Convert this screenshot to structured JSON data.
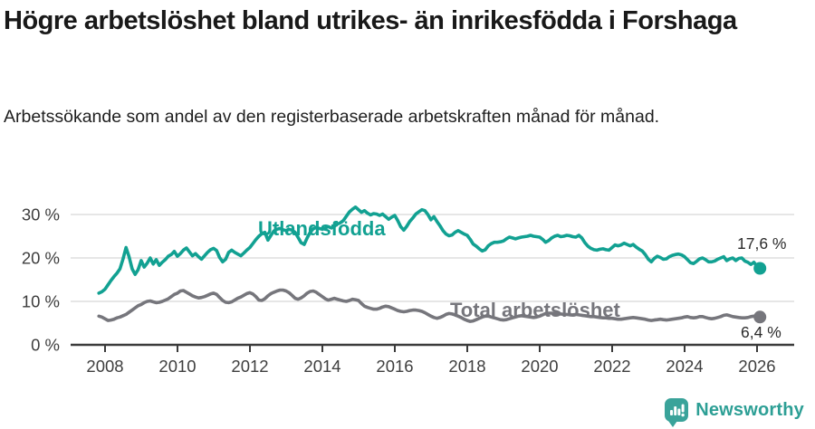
{
  "header": {
    "title": "Högre arbetslöshet bland utrikes- än inrikesfödda i Forshaga",
    "subtitle": "Arbetssökande som andel av den registerbaserade arbetskraften månad för månad."
  },
  "footer": {
    "brand": "Newsworthy",
    "logo_icon": "bar-chart-speech-bubble-icon"
  },
  "colors": {
    "accent": "#12A192",
    "gray_series": "#76767C",
    "grid": "#D8D8D8",
    "axis": "#3B3B3B",
    "tick_text": "#3E3E3E",
    "value_text": "#2B2B2B",
    "logo": "#3AA39A"
  },
  "chart_data": {
    "type": "line",
    "unit": "%",
    "title": "Högre arbetslöshet bland utrikes- än inrikesfödda i Forshaga",
    "xlabel": "",
    "ylabel": "Arbetssökande som andel av den registerbaserade arbetskraften",
    "x_ticks": [
      2008,
      2010,
      2012,
      2014,
      2016,
      2018,
      2020,
      2022,
      2024,
      2026
    ],
    "y_ticks": [
      0,
      10,
      20,
      30
    ],
    "y_tick_suffix": " %",
    "ylim": [
      0,
      33
    ],
    "xlim": [
      2007.0,
      2027.0
    ],
    "grid": true,
    "legend_position": "inline-labels",
    "series": [
      {
        "id": "utlandsfodda",
        "name": "Utlandsfödda",
        "color": "#12A192",
        "end_label": "17,6 %",
        "end_value": 17.6,
        "start": 2007.83,
        "interval_years": 0.0833,
        "values": [
          11.9,
          12.2,
          12.8,
          13.8,
          14.8,
          15.7,
          16.5,
          17.5,
          19.8,
          22.4,
          20.3,
          17.5,
          16.2,
          17.3,
          19.4,
          17.9,
          18.8,
          20.0,
          18.6,
          19.6,
          18.3,
          19.0,
          19.6,
          20.4,
          20.8,
          21.5,
          20.4,
          21.0,
          21.8,
          22.3,
          21.4,
          20.5,
          21.0,
          20.3,
          19.7,
          20.5,
          21.3,
          21.9,
          22.2,
          21.7,
          20.1,
          19.1,
          19.7,
          21.3,
          21.8,
          21.3,
          20.9,
          20.5,
          21.1,
          21.8,
          22.4,
          23.3,
          24.2,
          25.0,
          25.6,
          25.9,
          24.1,
          25.2,
          26.2,
          26.6,
          26.8,
          26.5,
          26.3,
          26.6,
          26.4,
          25.9,
          24.7,
          23.5,
          23.1,
          24.6,
          25.9,
          26.7,
          27.0,
          26.8,
          26.6,
          26.9,
          27.2,
          26.9,
          27.3,
          27.8,
          28.1,
          28.6,
          29.6,
          30.6,
          31.2,
          31.7,
          31.1,
          30.5,
          30.9,
          30.3,
          29.9,
          30.2,
          30.1,
          29.8,
          30.1,
          29.5,
          28.9,
          29.4,
          29.8,
          28.6,
          27.2,
          26.4,
          27.3,
          28.4,
          29.2,
          30.1,
          30.6,
          31.1,
          30.9,
          30.0,
          28.8,
          29.5,
          28.4,
          27.4,
          26.3,
          25.5,
          25.1,
          25.3,
          25.9,
          26.3,
          25.9,
          25.5,
          25.2,
          24.3,
          23.2,
          22.7,
          22.1,
          21.6,
          21.9,
          22.8,
          23.3,
          23.6,
          23.6,
          23.7,
          23.9,
          24.4,
          24.8,
          24.6,
          24.4,
          24.6,
          24.8,
          24.9,
          25.0,
          25.2,
          25.0,
          24.9,
          24.8,
          24.3,
          23.6,
          24.0,
          24.6,
          25.0,
          25.2,
          24.9,
          25.0,
          25.2,
          25.1,
          24.9,
          24.8,
          25.2,
          24.6,
          23.5,
          22.7,
          22.2,
          21.9,
          21.8,
          22.0,
          22.1,
          21.9,
          21.8,
          22.4,
          23.0,
          22.8,
          23.0,
          23.4,
          23.1,
          22.8,
          23.1,
          22.5,
          22.0,
          21.6,
          20.8,
          19.7,
          19.1,
          19.9,
          20.4,
          20.1,
          19.7,
          19.8,
          20.3,
          20.6,
          20.8,
          20.9,
          20.7,
          20.3,
          19.6,
          18.9,
          18.7,
          19.2,
          19.8,
          20.0,
          19.6,
          19.1,
          19.1,
          19.3,
          19.7,
          20.0,
          20.3,
          19.4,
          19.8,
          20.0,
          19.4,
          19.9,
          20.0,
          19.3,
          19.0,
          18.5,
          19.0,
          18.1,
          17.6
        ]
      },
      {
        "id": "total",
        "name": "Total arbetslöshet",
        "color": "#76767C",
        "end_label": "6,4 %",
        "end_value": 6.4,
        "start": 2007.83,
        "interval_years": 0.0833,
        "values": [
          6.6,
          6.4,
          6.0,
          5.6,
          5.7,
          5.9,
          6.2,
          6.4,
          6.7,
          7.0,
          7.5,
          8.0,
          8.5,
          9.0,
          9.3,
          9.7,
          10.0,
          10.1,
          9.9,
          9.7,
          9.8,
          10.0,
          10.3,
          10.6,
          11.1,
          11.6,
          11.9,
          12.4,
          12.5,
          12.1,
          11.7,
          11.3,
          11.0,
          10.8,
          10.9,
          11.1,
          11.4,
          11.7,
          11.9,
          11.6,
          10.9,
          10.2,
          9.8,
          9.7,
          9.9,
          10.3,
          10.7,
          11.0,
          11.4,
          11.8,
          12.0,
          11.7,
          11.1,
          10.3,
          10.2,
          10.6,
          11.3,
          11.8,
          12.1,
          12.4,
          12.6,
          12.6,
          12.4,
          12.0,
          11.4,
          10.7,
          10.5,
          10.8,
          11.3,
          11.9,
          12.3,
          12.4,
          12.1,
          11.6,
          11.1,
          10.6,
          10.3,
          10.5,
          10.7,
          10.5,
          10.3,
          10.1,
          10.0,
          10.2,
          10.5,
          10.4,
          10.2,
          9.5,
          8.9,
          8.6,
          8.4,
          8.2,
          8.2,
          8.4,
          8.7,
          8.9,
          8.8,
          8.5,
          8.2,
          7.9,
          7.7,
          7.6,
          7.7,
          7.9,
          8.0,
          8.0,
          7.9,
          7.7,
          7.4,
          7.0,
          6.6,
          6.3,
          6.1,
          6.3,
          6.6,
          7.0,
          7.2,
          7.1,
          6.9,
          6.6,
          6.3,
          5.9,
          5.6,
          5.4,
          5.5,
          5.8,
          6.1,
          6.4,
          6.6,
          6.6,
          6.4,
          6.2,
          6.0,
          5.8,
          5.7,
          5.8,
          6.0,
          6.2,
          6.4,
          6.6,
          6.7,
          6.6,
          6.5,
          6.4,
          6.3,
          6.4,
          6.6,
          6.9,
          7.2,
          7.3,
          7.3,
          7.2,
          7.1,
          7.1,
          7.0,
          7.0,
          6.9,
          6.9,
          7.0,
          6.9,
          6.8,
          6.7,
          6.6,
          6.5,
          6.5,
          6.4,
          6.3,
          6.2,
          6.2,
          6.1,
          6.1,
          6.0,
          5.9,
          5.9,
          6.0,
          6.1,
          6.2,
          6.3,
          6.2,
          6.1,
          6.0,
          5.9,
          5.7,
          5.6,
          5.7,
          5.8,
          5.9,
          5.8,
          5.7,
          5.8,
          5.9,
          6.0,
          6.1,
          6.2,
          6.4,
          6.5,
          6.3,
          6.2,
          6.3,
          6.5,
          6.5,
          6.3,
          6.1,
          6.0,
          6.1,
          6.3,
          6.5,
          6.8,
          6.9,
          6.7,
          6.5,
          6.4,
          6.3,
          6.2,
          6.2,
          6.3,
          6.5,
          6.6,
          6.5,
          6.4
        ]
      }
    ]
  }
}
